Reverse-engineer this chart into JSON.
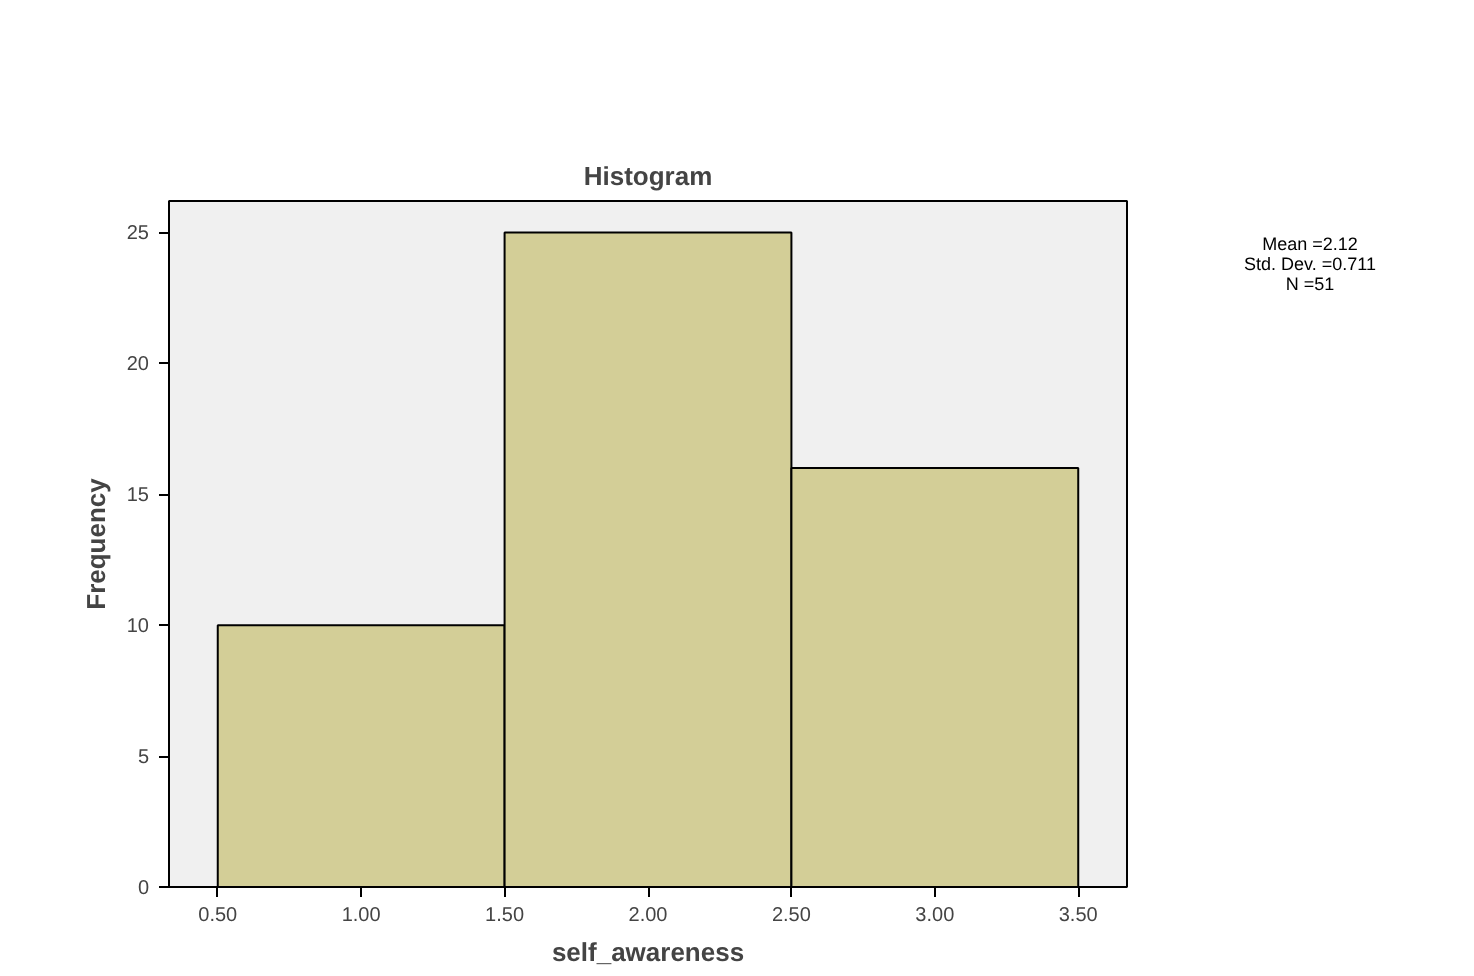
{
  "chart_data": {
    "type": "histogram",
    "title": "Histogram",
    "xlabel": "self_awareness",
    "ylabel": "Frequency",
    "bins": [
      0.5,
      1.5,
      2.5,
      3.5
    ],
    "values": [
      10,
      25,
      16
    ],
    "color": "#d3ce97",
    "xlim": [
      0.33,
      3.67
    ],
    "ylim": [
      0,
      26.2
    ],
    "xticks": [
      {
        "value": 0.5,
        "label": "0.50"
      },
      {
        "value": 1.0,
        "label": "1.00"
      },
      {
        "value": 1.5,
        "label": "1.50"
      },
      {
        "value": 2.0,
        "label": "2.00"
      },
      {
        "value": 2.5,
        "label": "2.50"
      },
      {
        "value": 3.0,
        "label": "3.00"
      },
      {
        "value": 3.5,
        "label": "3.50"
      }
    ],
    "yticks": [
      0,
      5,
      10,
      15,
      20,
      25
    ],
    "annotations": [
      "Mean =2.12",
      "Std. Dev. =0.711",
      "N =51"
    ],
    "grid": false
  }
}
